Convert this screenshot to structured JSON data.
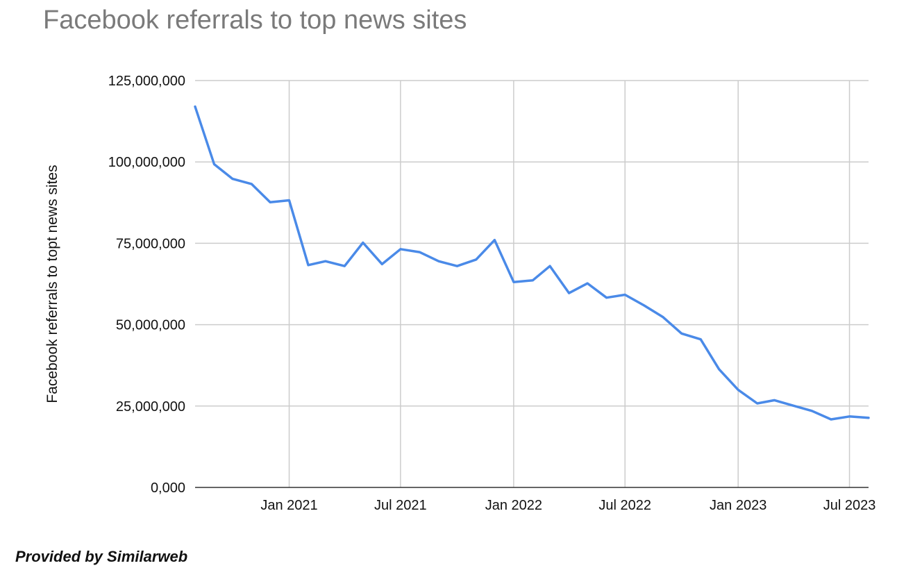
{
  "chart_data": {
    "type": "line",
    "title": "Facebook referrals to top news sites",
    "xlabel": "",
    "ylabel": "Facebook referrals to topt news sites",
    "ylim": [
      0,
      125000000
    ],
    "xlim": [
      "2020-08-01",
      "2023-08-01"
    ],
    "grid": true,
    "legend": "none",
    "line_color": "#4a8ae8",
    "grid_color": "#cccccc",
    "y_ticks": [
      {
        "value": 0,
        "label": "0,000"
      },
      {
        "value": 25000000,
        "label": "25,000,000"
      },
      {
        "value": 50000000,
        "label": "50,000,000"
      },
      {
        "value": 75000000,
        "label": "75,000,000"
      },
      {
        "value": 100000000,
        "label": "100,000,000"
      },
      {
        "value": 125000000,
        "label": "125,000,000"
      }
    ],
    "x_ticks": [
      {
        "date": "2021-01-01",
        "label": "Jan 2021"
      },
      {
        "date": "2021-07-01",
        "label": "Jul 2021"
      },
      {
        "date": "2022-01-01",
        "label": "Jan 2022"
      },
      {
        "date": "2022-07-01",
        "label": "Jul 2022"
      },
      {
        "date": "2023-01-01",
        "label": "Jan 2023"
      },
      {
        "date": "2023-07-01",
        "label": "Jul 2023"
      }
    ],
    "series": [
      {
        "x": [
          "2020-08-01",
          "2020-09-01",
          "2020-10-01",
          "2020-11-01",
          "2020-12-01",
          "2021-01-01",
          "2021-02-01",
          "2021-03-01",
          "2021-04-01",
          "2021-05-01",
          "2021-06-01",
          "2021-07-01",
          "2021-08-01",
          "2021-09-01",
          "2021-10-01",
          "2021-11-01",
          "2021-12-01",
          "2022-01-01",
          "2022-02-01",
          "2022-03-01",
          "2022-04-01",
          "2022-05-01",
          "2022-06-01",
          "2022-07-01",
          "2022-08-01",
          "2022-09-01",
          "2022-10-01",
          "2022-11-01",
          "2022-12-01",
          "2023-01-01",
          "2023-02-01",
          "2023-03-01",
          "2023-04-01",
          "2023-05-01",
          "2023-06-01",
          "2023-07-01",
          "2023-08-01"
        ],
        "values": [
          117000000,
          99300000,
          94800000,
          93200000,
          87600000,
          88200000,
          68300000,
          69500000,
          68000000,
          75200000,
          68600000,
          73200000,
          72300000,
          69500000,
          68000000,
          70000000,
          76000000,
          63100000,
          63600000,
          68000000,
          59700000,
          62700000,
          58300000,
          59200000,
          55900000,
          52300000,
          47300000,
          45500000,
          36300000,
          30000000,
          25800000,
          26800000,
          25100000,
          23500000,
          20900000,
          21800000,
          21400000
        ]
      }
    ]
  },
  "credit": "Provided by Similarweb"
}
